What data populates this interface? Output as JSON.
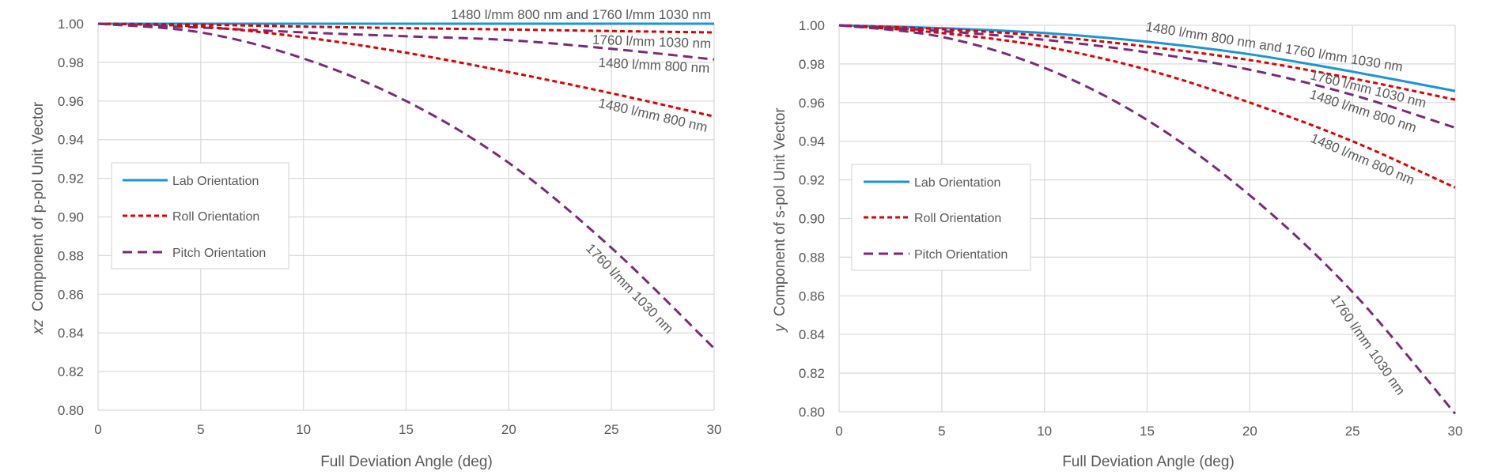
{
  "chart_data": [
    {
      "type": "line",
      "xlabel": "Full Deviation Angle (deg)",
      "ylabel_prefix": "xz",
      "ylabel_rest": "Component of p-pol Unit Vector",
      "xlim": [
        0,
        30
      ],
      "ylim": [
        0.8,
        1.0
      ],
      "x_ticks": [
        "0",
        "5",
        "10",
        "15",
        "20",
        "25",
        "30"
      ],
      "y_ticks": [
        "0.80",
        "0.82",
        "0.84",
        "0.86",
        "0.88",
        "0.90",
        "0.92",
        "0.94",
        "0.96",
        "0.98",
        "1.00"
      ],
      "grid": true,
      "legend": [
        {
          "label": "Lab Orientation",
          "color": "#1a96d4",
          "style": "solid"
        },
        {
          "label": "Roll Orientation",
          "color": "#e00000",
          "style": "dashed"
        },
        {
          "label": "Pitch Orientation",
          "color": "#7b2a7b",
          "style": "dashed"
        }
      ],
      "series": [
        {
          "orientation": "Lab Orientation",
          "label": "1480 l/mm 800 nm and 1760 l/mm 1030 nm",
          "color": "#1a96d4",
          "style": "solid",
          "x": [
            0,
            5,
            10,
            15,
            20,
            25,
            30
          ],
          "y": [
            1.0,
            1.0,
            1.0,
            1.0,
            1.0,
            1.0,
            1.0
          ]
        },
        {
          "orientation": "Roll Orientation",
          "label": "1760 l/mm 1030 nm",
          "color": "#e00000",
          "style": "dashed",
          "x": [
            0,
            5,
            10,
            15,
            20,
            25,
            30
          ],
          "y": [
            1.0,
            0.9995,
            0.9985,
            0.9977,
            0.997,
            0.9962,
            0.9955
          ]
        },
        {
          "orientation": "Pitch Orientation",
          "label": "1480 l/mm 800 nm",
          "color": "#7b2a7b",
          "style": "dashed",
          "x": [
            0,
            5,
            10,
            15,
            20,
            25,
            30
          ],
          "y": [
            1.0,
            0.998,
            0.9955,
            0.9935,
            0.9915,
            0.987,
            0.9815
          ]
        },
        {
          "orientation": "Roll Orientation",
          "label": "1480 l/mm 800 nm",
          "color": "#e00000",
          "style": "dashed",
          "x": [
            0,
            5,
            10,
            15,
            20,
            25,
            30
          ],
          "y": [
            1.0,
            0.9985,
            0.993,
            0.985,
            0.975,
            0.964,
            0.952
          ]
        },
        {
          "orientation": "Pitch Orientation",
          "label": "1760 l/mm 1030 nm",
          "color": "#7b2a7b",
          "style": "dashed",
          "x": [
            0,
            5,
            10,
            15,
            20,
            25,
            30
          ],
          "y": [
            1.0,
            0.9955,
            0.982,
            0.96,
            0.928,
            0.884,
            0.832
          ]
        }
      ]
    },
    {
      "type": "line",
      "xlabel": "Full Deviation Angle (deg)",
      "ylabel_prefix": "y",
      "ylabel_rest": "Component of s-pol Unit Vector",
      "xlim": [
        0,
        30
      ],
      "ylim": [
        0.8,
        1.0
      ],
      "x_ticks": [
        "0",
        "5",
        "10",
        "15",
        "20",
        "25",
        "30"
      ],
      "y_ticks": [
        "0.80",
        "0.82",
        "0.84",
        "0.86",
        "0.88",
        "0.90",
        "0.92",
        "0.94",
        "0.96",
        "0.98",
        "1.00"
      ],
      "grid": true,
      "legend": [
        {
          "label": "Lab Orientation",
          "color": "#1a96d4",
          "style": "solid"
        },
        {
          "label": "Roll Orientation",
          "color": "#e00000",
          "style": "dashed"
        },
        {
          "label": "Pitch Orientation",
          "color": "#7b2a7b",
          "style": "dashed"
        }
      ],
      "series": [
        {
          "orientation": "Lab Orientation",
          "label": "1480 l/mm 800 nm and 1760 l/mm 1030 nm",
          "color": "#1a96d4",
          "style": "solid",
          "x": [
            0,
            5,
            10,
            15,
            20,
            25,
            30
          ],
          "y": [
            1.0,
            0.9985,
            0.996,
            0.9915,
            0.985,
            0.976,
            0.966
          ]
        },
        {
          "orientation": "Roll Orientation",
          "label": "1760 l/mm 1030 nm",
          "color": "#e00000",
          "style": "dashed",
          "x": [
            0,
            5,
            10,
            15,
            20,
            25,
            30
          ],
          "y": [
            1.0,
            0.998,
            0.9945,
            0.989,
            0.982,
            0.9725,
            0.9615
          ]
        },
        {
          "orientation": "Pitch Orientation",
          "label": "1480 l/mm 800 nm",
          "color": "#7b2a7b",
          "style": "dashed",
          "x": [
            0,
            5,
            10,
            15,
            20,
            25,
            30
          ],
          "y": [
            1.0,
            0.997,
            0.9925,
            0.986,
            0.977,
            0.964,
            0.947
          ]
        },
        {
          "orientation": "Roll Orientation",
          "label": "1480 l/mm 800 nm",
          "color": "#e00000",
          "style": "dashed",
          "x": [
            0,
            5,
            10,
            15,
            20,
            25,
            30
          ],
          "y": [
            1.0,
            0.996,
            0.989,
            0.977,
            0.96,
            0.94,
            0.916
          ]
        },
        {
          "orientation": "Pitch Orientation",
          "label": "1760 l/mm 1030 nm",
          "color": "#7b2a7b",
          "style": "dashed",
          "x": [
            0,
            5,
            10,
            15,
            20,
            25,
            30
          ],
          "y": [
            1.0,
            0.994,
            0.978,
            0.951,
            0.912,
            0.862,
            0.799
          ]
        }
      ]
    }
  ]
}
